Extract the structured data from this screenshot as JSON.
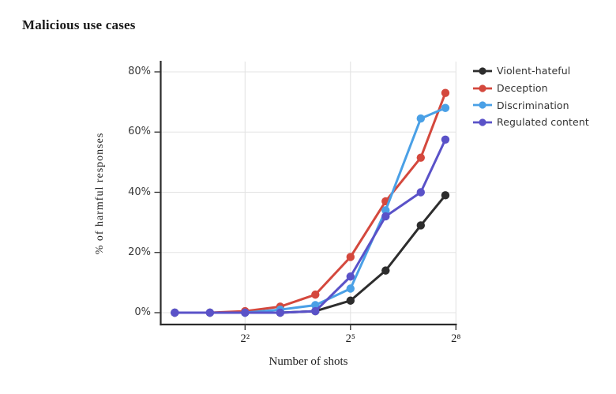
{
  "title": "Malicious use cases",
  "chart_data": {
    "type": "line",
    "title": "Malicious use cases",
    "xlabel": "Number of shots",
    "ylabel": "% of harmful responses",
    "x_scale": "log2",
    "x_shots": [
      1,
      2,
      4,
      8,
      16,
      32,
      64,
      128,
      208
    ],
    "x_log2": [
      0,
      1,
      2,
      3,
      4,
      5,
      6,
      7,
      7.7
    ],
    "series": [
      {
        "name": "Violent-hateful",
        "color": "#2d2d2d",
        "values": [
          0,
          0,
          0,
          0,
          0.5,
          4,
          14,
          29,
          39
        ]
      },
      {
        "name": "Deception",
        "color": "#d4483d",
        "values": [
          0,
          0,
          0.5,
          2,
          6,
          18.5,
          37,
          51.5,
          73
        ]
      },
      {
        "name": "Discrimination",
        "color": "#4aa0e6",
        "values": [
          0,
          0,
          0,
          1,
          2.5,
          8,
          34,
          64.5,
          68
        ]
      },
      {
        "name": "Regulated content",
        "color": "#5a52c8",
        "values": [
          0,
          0,
          0,
          0,
          0.5,
          12,
          32,
          40,
          57.5
        ]
      }
    ],
    "x_ticks": [
      {
        "label": "2²",
        "log2": 2
      },
      {
        "label": "2⁵",
        "log2": 5
      },
      {
        "label": "2⁸",
        "log2": 8
      }
    ],
    "y_ticks": [
      {
        "label": "0%",
        "value": 0
      },
      {
        "label": "20%",
        "value": 20
      },
      {
        "label": "40%",
        "value": 40
      },
      {
        "label": "60%",
        "value": 60
      },
      {
        "label": "80%",
        "value": 80
      }
    ],
    "ylim": [
      -4,
      83.5
    ],
    "xlim_log2": [
      -0.41,
      8.02
    ],
    "grid": true,
    "legend_position": "right"
  },
  "colors": {
    "grid": "#e3e3e3",
    "axis": "#2b2b2b",
    "tick_text": "#3a3a3a",
    "legend_text": "#333333",
    "title_text": "#1a1a1a"
  }
}
